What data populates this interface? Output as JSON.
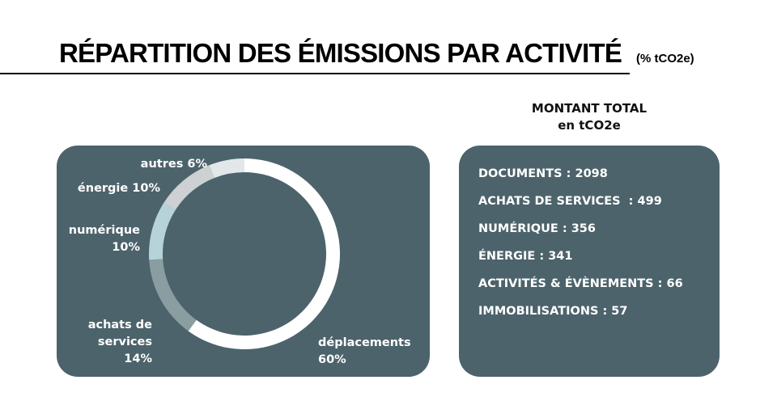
{
  "title": {
    "main": "RÉPARTITION DES ÉMISSIONS PAR ACTIVITÉ",
    "unit": "(% tCO2e)"
  },
  "colors": {
    "panel": "#4c636b",
    "ring": [
      "#ffffff",
      "#8a9ea2",
      "#b7d3da",
      "#cdd1d3",
      "#e2e8ea"
    ]
  },
  "chart_data": {
    "type": "pie",
    "donut": true,
    "title": "RÉPARTITION DES ÉMISSIONS PAR ACTIVITÉ",
    "unit": "% tCO2e",
    "categories": [
      "déplacements",
      "achats de services",
      "numérique",
      "énergie",
      "autres"
    ],
    "values": [
      60,
      14,
      10,
      10,
      6
    ],
    "labels": [
      [
        "déplacements",
        "60%"
      ],
      [
        "achats de",
        "services",
        "14%"
      ],
      [
        "numérique",
        "10%"
      ],
      [
        "énergie 10%"
      ],
      [
        "autres 6%"
      ]
    ]
  },
  "totals": {
    "heading_line1": "MONTANT TOTAL",
    "heading_line2": "en tCO2e",
    "items": [
      "DOCUMENTS : 2098",
      "ACHATS DE SERVICES  : 499",
      "NUMÉRIQUE : 356",
      "ÉNERGIE : 341",
      "ACTIVITÉS & ÉVÈNEMENTS : 66",
      "IMMOBILISATIONS : 57"
    ]
  }
}
